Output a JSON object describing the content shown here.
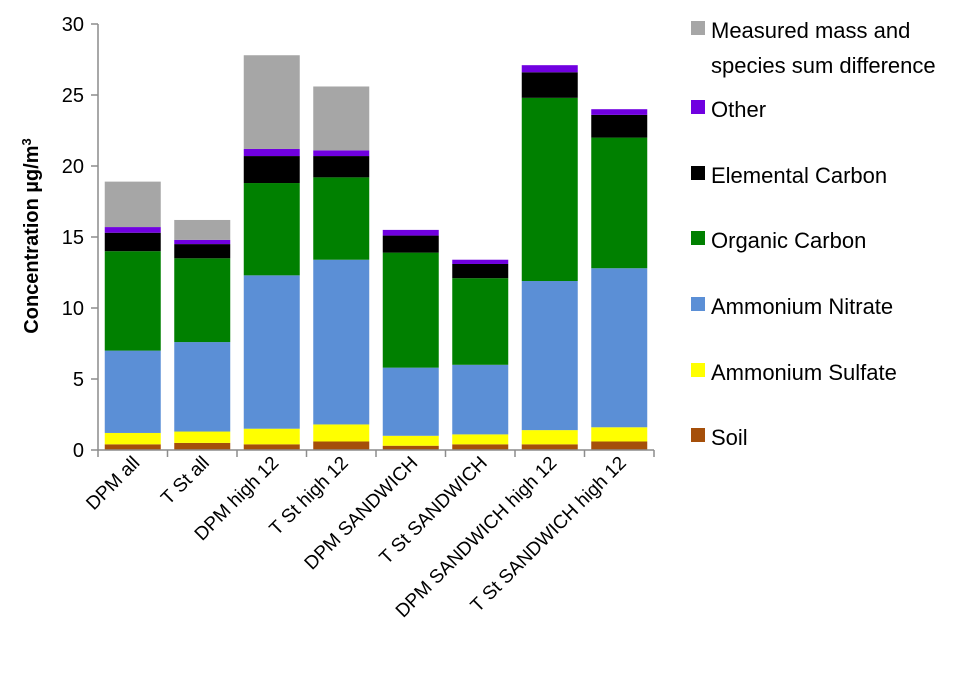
{
  "chart_data": {
    "type": "bar",
    "stacked": true,
    "title": "",
    "xlabel": "",
    "ylabel": "Concentration µg/m",
    "ylabel_superscript": "3",
    "ylim": [
      0,
      30
    ],
    "yticks": [
      0,
      5,
      10,
      15,
      20,
      25,
      30
    ],
    "grid": false,
    "legend": "right",
    "categories": [
      "DPM all",
      "T St all",
      "DPM high 12",
      "T St high 12",
      "DPM SANDWICH",
      "T St SANDWICH",
      "DPM SANDWICH high 12",
      "T St SANDWICH high 12"
    ],
    "series": [
      {
        "name": "Soil",
        "color": "#a54f0a",
        "values": [
          0.4,
          0.5,
          0.4,
          0.6,
          0.3,
          0.4,
          0.4,
          0.6
        ]
      },
      {
        "name": "Ammonium Sulfate",
        "color": "#ffff00",
        "values": [
          0.8,
          0.8,
          1.1,
          1.2,
          0.7,
          0.7,
          1.0,
          1.0
        ]
      },
      {
        "name": "Ammonium Nitrate",
        "color": "#5b8fd6",
        "values": [
          5.8,
          6.3,
          10.8,
          11.6,
          4.8,
          4.9,
          10.5,
          11.2
        ]
      },
      {
        "name": "Organic Carbon",
        "color": "#008000",
        "values": [
          7.0,
          5.9,
          6.5,
          5.8,
          8.1,
          6.1,
          12.9,
          9.2
        ]
      },
      {
        "name": "Elemental Carbon",
        "color": "#000000",
        "values": [
          1.3,
          1.0,
          1.9,
          1.5,
          1.2,
          1.0,
          1.8,
          1.6
        ]
      },
      {
        "name": "Other",
        "color": "#7000e0",
        "values": [
          0.4,
          0.3,
          0.5,
          0.4,
          0.4,
          0.3,
          0.5,
          0.4
        ]
      },
      {
        "name": "Measured mass and species sum difference",
        "color": "#a6a6a6",
        "values": [
          3.2,
          1.4,
          6.6,
          4.5,
          0.0,
          0.0,
          0.0,
          0.0
        ]
      }
    ],
    "legend_order": [
      "Measured mass and species sum difference",
      "Other",
      "Elemental Carbon",
      "Organic Carbon",
      "Ammonium Nitrate",
      "Ammonium Sulfate",
      "Soil"
    ],
    "legend_lines": {
      "Measured mass and species sum difference": [
        "Measured mass and",
        "species sum difference"
      ]
    }
  }
}
